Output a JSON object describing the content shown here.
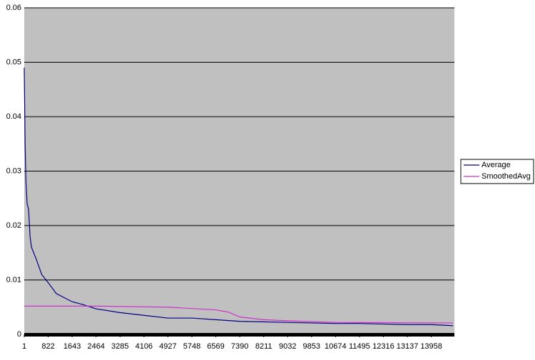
{
  "chart_data": {
    "type": "line",
    "xlim": [
      1,
      14750
    ],
    "xticks": [
      1,
      822,
      1643,
      2464,
      3285,
      4106,
      4927,
      5748,
      6569,
      7390,
      8211,
      9032,
      9853,
      10674,
      11495,
      12316,
      13137,
      13958
    ],
    "ylim": [
      0,
      0.06
    ],
    "yticks": [
      0,
      0.01,
      0.02,
      0.03,
      0.04,
      0.05,
      0.06
    ],
    "grid": true,
    "legend": "right",
    "series": [
      {
        "name": "Average",
        "color": "#000080",
        "x": [
          1,
          30,
          60,
          100,
          150,
          200,
          250,
          400,
          600,
          822,
          1100,
          1643,
          2000,
          2464,
          3285,
          4106,
          4927,
          5748,
          6569,
          7390,
          8211,
          9032,
          9853,
          10674,
          11495,
          12316,
          13137,
          13958,
          14700
        ],
        "values": [
          0.049,
          0.035,
          0.028,
          0.024,
          0.023,
          0.018,
          0.016,
          0.014,
          0.011,
          0.0095,
          0.0075,
          0.006,
          0.0055,
          0.0047,
          0.004,
          0.0035,
          0.003,
          0.003,
          0.0027,
          0.0024,
          0.0023,
          0.0022,
          0.0021,
          0.002,
          0.002,
          0.0019,
          0.0018,
          0.0018,
          0.0016
        ]
      },
      {
        "name": "SmoothedAvg",
        "color": "#cc33cc",
        "x": [
          1,
          2464,
          4927,
          6569,
          7000,
          7390,
          8211,
          9032,
          10674,
          14700
        ],
        "values": [
          0.0052,
          0.0052,
          0.005,
          0.0045,
          0.0041,
          0.0032,
          0.0027,
          0.0025,
          0.0022,
          0.0021
        ]
      }
    ]
  }
}
